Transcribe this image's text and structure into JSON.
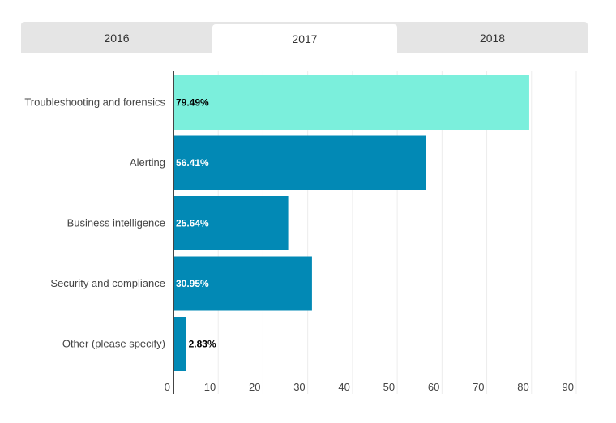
{
  "tabs": [
    {
      "label": "2016",
      "active": false
    },
    {
      "label": "2017",
      "active": true
    },
    {
      "label": "2018",
      "active": false
    }
  ],
  "chart_data": {
    "type": "bar",
    "orientation": "horizontal",
    "categories": [
      "Troubleshooting and forensics",
      "Alerting",
      "Business intelligence",
      "Security and compliance",
      "Other (please specify)"
    ],
    "values": [
      79.49,
      56.41,
      25.64,
      30.95,
      2.83
    ],
    "value_labels": [
      "79.49%",
      "56.41%",
      "25.64%",
      "30.95%",
      "2.83%"
    ],
    "colors": [
      "#7befdc",
      "#0289b5",
      "#0289b5",
      "#0289b5",
      "#0289b5"
    ],
    "xlim": [
      0,
      90
    ],
    "xticks": [
      "0",
      "10",
      "20",
      "30",
      "40",
      "50",
      "60",
      "70",
      "80",
      "90"
    ],
    "grid": true,
    "title": "",
    "xlabel": "",
    "ylabel": ""
  }
}
